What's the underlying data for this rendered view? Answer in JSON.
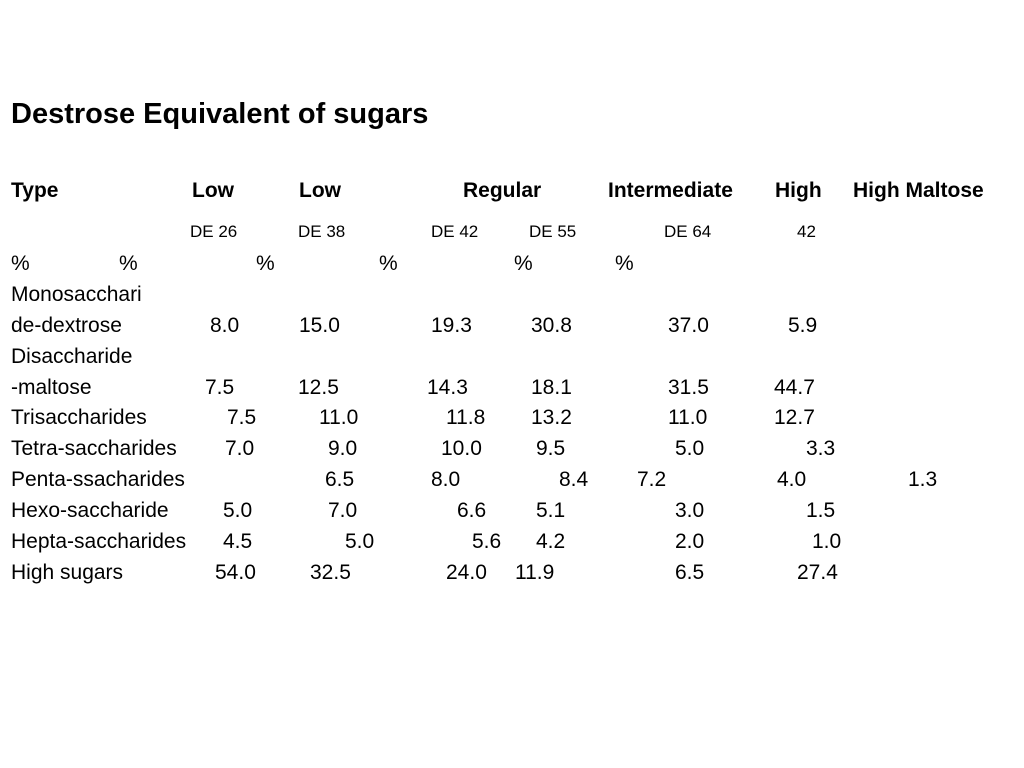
{
  "title": "Destrose Equivalent of sugars",
  "header": [
    "Type",
    "Low",
    "Low",
    "Regular",
    "Intermediate",
    "High",
    "High Maltose"
  ],
  "de_row": [
    "DE 26",
    "DE 38",
    "DE 42",
    "DE 55",
    "DE 64",
    "42"
  ],
  "percent_row": [
    "%",
    "%",
    "%",
    "%",
    "%",
    "%"
  ],
  "rows": [
    {
      "label": "Monosacchari",
      "values": []
    },
    {
      "label": "de-dextrose",
      "values": [
        "8.0",
        "15.0",
        "19.3",
        "30.8",
        "37.0",
        "5.9"
      ]
    },
    {
      "label": "Disaccharide",
      "values": []
    },
    {
      "label": "-maltose",
      "values": [
        "7.5",
        "12.5",
        "14.3",
        "18.1",
        "31.5",
        "44.7"
      ]
    },
    {
      "label": "Trisaccharides",
      "values": [
        "7.5",
        "11.0",
        "11.8",
        "13.2",
        "11.0",
        "12.7"
      ]
    },
    {
      "label": "Tetra-saccharides",
      "values": [
        "7.0",
        "9.0",
        "10.0",
        "9.5",
        "5.0",
        "3.3"
      ]
    },
    {
      "label": "Penta-ssacharides",
      "values": [
        "6.5",
        "8.0",
        "8.4",
        "7.2",
        "4.0",
        "1.3"
      ]
    },
    {
      "label": "Hexo-saccharide",
      "values": [
        "5.0",
        "7.0",
        "6.6",
        "5.1",
        "3.0",
        "1.5"
      ]
    },
    {
      "label": "Hepta-saccharides",
      "values": [
        "4.5",
        "5.0",
        "5.6",
        "4.2",
        "2.0",
        "1.0"
      ]
    },
    {
      "label": "High sugars",
      "values": [
        "54.0",
        "32.5",
        "24.0",
        "11.9",
        "6.5",
        "27.4"
      ]
    }
  ]
}
